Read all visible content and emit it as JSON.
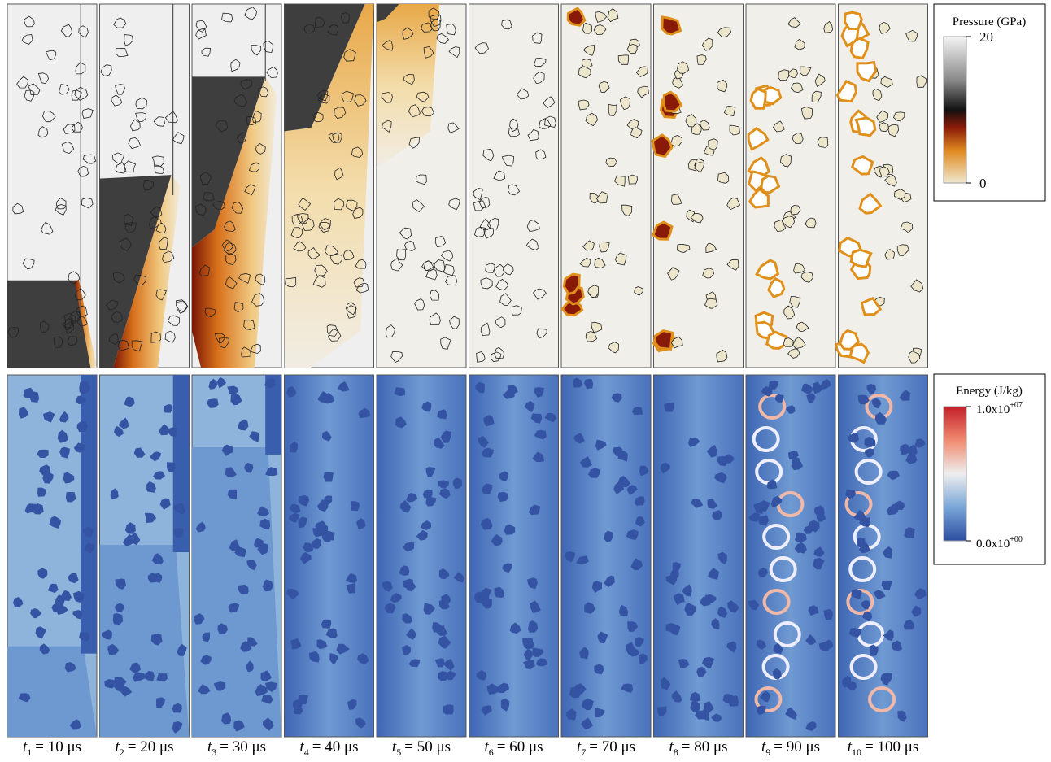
{
  "panels": [
    {
      "symbol": "t",
      "subscript": "1",
      "text": "= 10 μs"
    },
    {
      "symbol": "t",
      "subscript": "2",
      "text": "= 20 μs"
    },
    {
      "symbol": "t",
      "subscript": "3",
      "text": "= 30 μs"
    },
    {
      "symbol": "t",
      "subscript": "4",
      "text": "= 40 μs"
    },
    {
      "symbol": "t",
      "subscript": "5",
      "text": "= 50 μs"
    },
    {
      "symbol": "t",
      "subscript": "6",
      "text": "= 60 μs"
    },
    {
      "symbol": "t",
      "subscript": "7",
      "text": "= 70 μs"
    },
    {
      "symbol": "t",
      "subscript": "8",
      "text": "= 80 μs"
    },
    {
      "symbol": "t",
      "subscript": "9",
      "text": "= 90 μs"
    },
    {
      "symbol": "t",
      "subscript": "10",
      "text": "= 100 μs"
    }
  ],
  "pressure_legend": {
    "title": "Pressure (GPa)",
    "ticks": [
      0,
      20
    ]
  },
  "energy_legend": {
    "title": "Energy (J/kg)",
    "ticks": [
      {
        "value": 0,
        "label": "0.0x10",
        "exponent": "+00"
      },
      {
        "value": 10000000,
        "label": "1.0x10",
        "exponent": "+07"
      }
    ]
  }
}
